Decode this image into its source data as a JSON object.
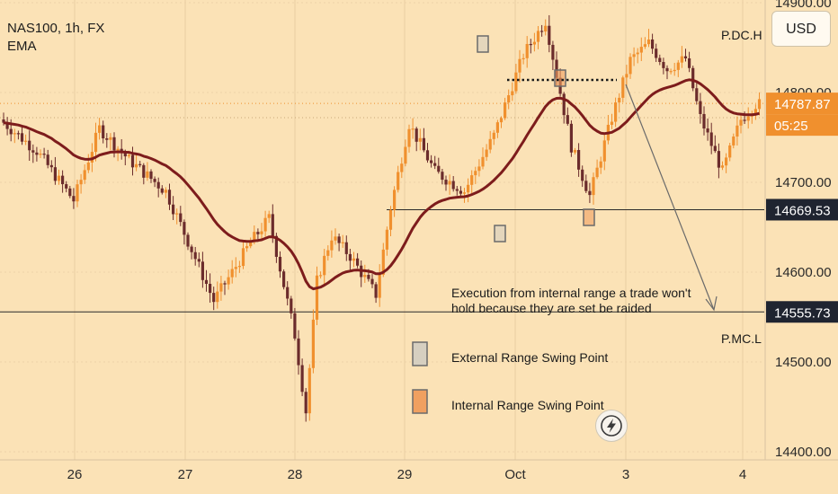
{
  "header": {
    "symbol": "NAS100, 1h, FX",
    "indicator": "EMA"
  },
  "currency_button": "USD",
  "colors": {
    "background": "#fbe2b6",
    "bull_candle": "#f0902e",
    "bear_candle": "#6b2c2c",
    "ema": "#7d1c1c",
    "external_marker": "#d6cfc0",
    "internal_marker": "#f0a060"
  },
  "chart_data": {
    "type": "candlestick",
    "symbol": "NAS100",
    "timeframe": "1h",
    "y_ticks": [
      "14900.00",
      "14800.00",
      "14700.00",
      "14600.00",
      "14500.00",
      "14400.00"
    ],
    "ylim": [
      14390,
      14990
    ],
    "x_ticks": [
      "26",
      "27",
      "28",
      "29",
      "Oct",
      "3",
      "4"
    ],
    "price_labels": [
      {
        "text": "14787.87",
        "value": 14787.87,
        "fill": "#f0902e",
        "color": "#ffffff"
      },
      {
        "text": "05:25",
        "value": 14766,
        "fill": "#f0902e",
        "color": "#ffffff"
      },
      {
        "text": "14669.53",
        "value": 14669.53,
        "fill": "#1f2430",
        "color": "#ffffff"
      },
      {
        "text": "14555.73",
        "value": 14555.73,
        "fill": "#1f2430",
        "color": "#ffffff"
      }
    ],
    "levels": [
      {
        "label": "P.DC.H",
        "value": 14912
      },
      {
        "label": "P.MC.L",
        "value": 14555.73
      },
      {
        "label": "",
        "value": 14669.53
      }
    ],
    "annotation_text": [
      "Execution from internal range a trade won't",
      "hold because they are set be raided"
    ],
    "legend": [
      {
        "label": "External Range Swing Point",
        "marker": "external"
      },
      {
        "label": "Internal Range Swing Point",
        "marker": "internal"
      }
    ]
  }
}
